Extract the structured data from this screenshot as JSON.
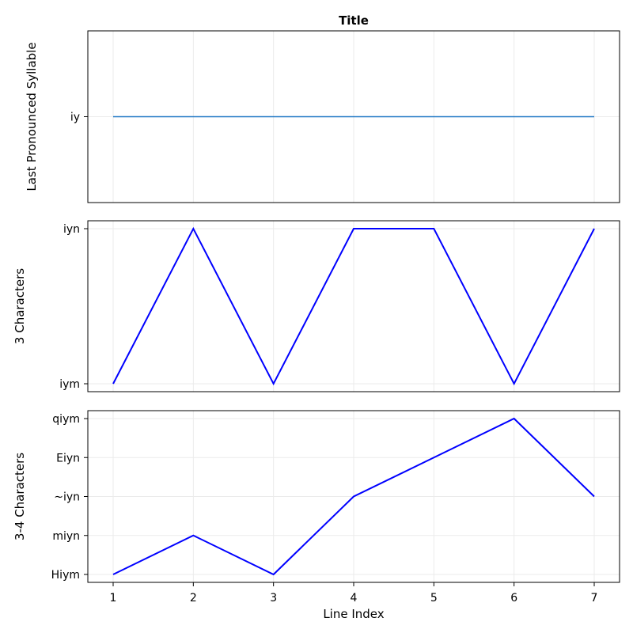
{
  "chart_data": [
    {
      "type": "line",
      "title": "Title",
      "ylabel": "Last Pronounced Syllable",
      "y_categories": [
        "iy"
      ],
      "x": [
        1,
        2,
        3,
        4,
        5,
        6,
        7
      ],
      "series": [
        {
          "color": "#1f77c4",
          "values": [
            "iy",
            "iy",
            "iy",
            "iy",
            "iy",
            "iy",
            "iy"
          ]
        }
      ]
    },
    {
      "type": "line",
      "ylabel": "3 Characters",
      "y_categories": [
        "iym",
        "iyn"
      ],
      "x": [
        1,
        2,
        3,
        4,
        5,
        6,
        7
      ],
      "series": [
        {
          "color": "#0000ff",
          "values": [
            "iym",
            "iyn",
            "iym",
            "iyn",
            "iyn",
            "iym",
            "iyn"
          ]
        }
      ]
    },
    {
      "type": "line",
      "ylabel": "3-4 Characters",
      "xlabel": "Line Index",
      "y_categories": [
        "Hiym",
        "miyn",
        "~iyn",
        "Eiyn",
        "qiym"
      ],
      "x": [
        1,
        2,
        3,
        4,
        5,
        6,
        7
      ],
      "x_ticks": [
        "1",
        "2",
        "3",
        "4",
        "5",
        "6",
        "7"
      ],
      "series": [
        {
          "color": "#0000ff",
          "values": [
            "Hiym",
            "miyn",
            "Hiym",
            "~iyn",
            "Eiyn",
            "qiym",
            "~iyn"
          ]
        }
      ]
    }
  ]
}
